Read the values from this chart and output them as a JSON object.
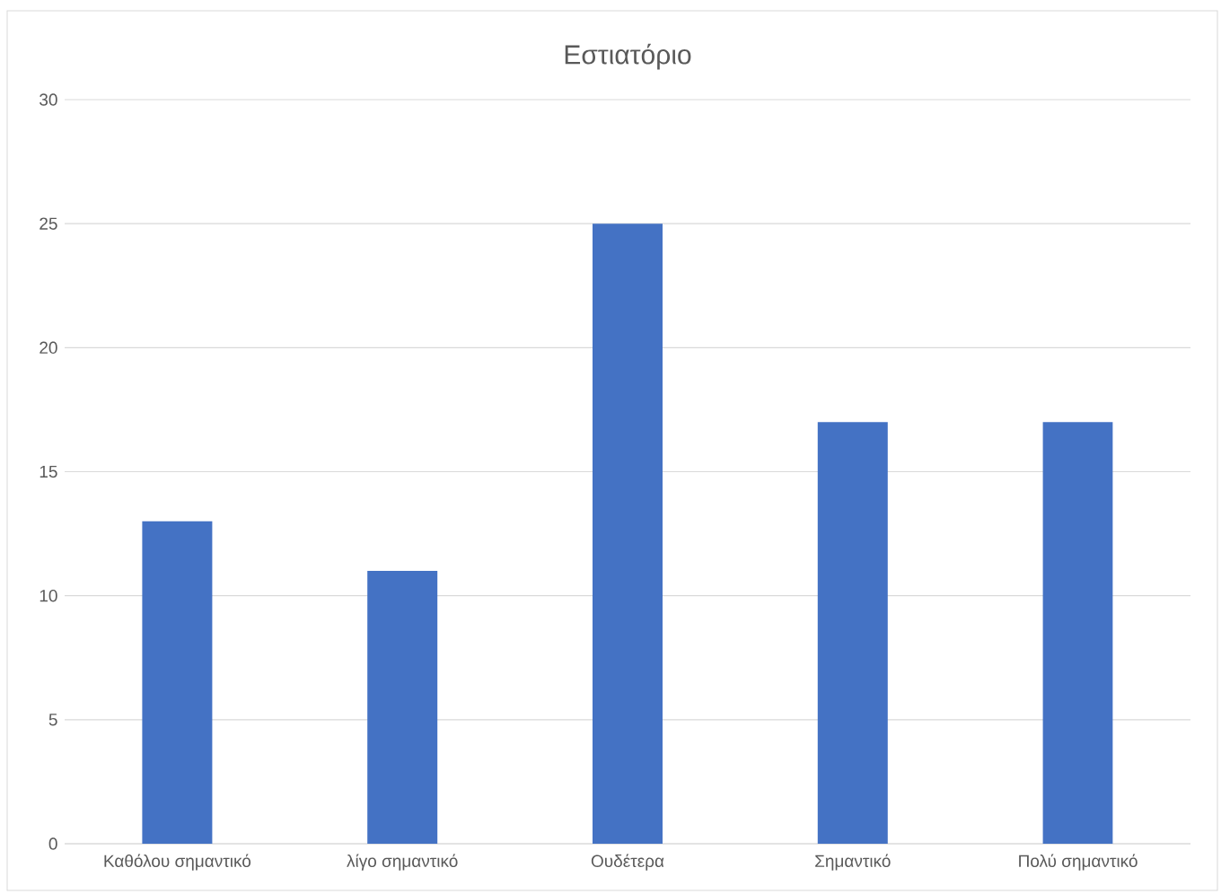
{
  "chart_data": {
    "type": "bar",
    "title": "Εστιατόριο",
    "categories": [
      "Καθόλου σημαντικό",
      "λίγο σημαντικό",
      "Ουδέτερα",
      "Σημαντικό",
      "Πολύ σημαντικό"
    ],
    "values": [
      13,
      11,
      25,
      17,
      17
    ],
    "color": "#4472c4",
    "ylim": [
      0,
      30
    ],
    "yticks": [
      0,
      5,
      10,
      15,
      20,
      25,
      30
    ],
    "grid": "y"
  }
}
